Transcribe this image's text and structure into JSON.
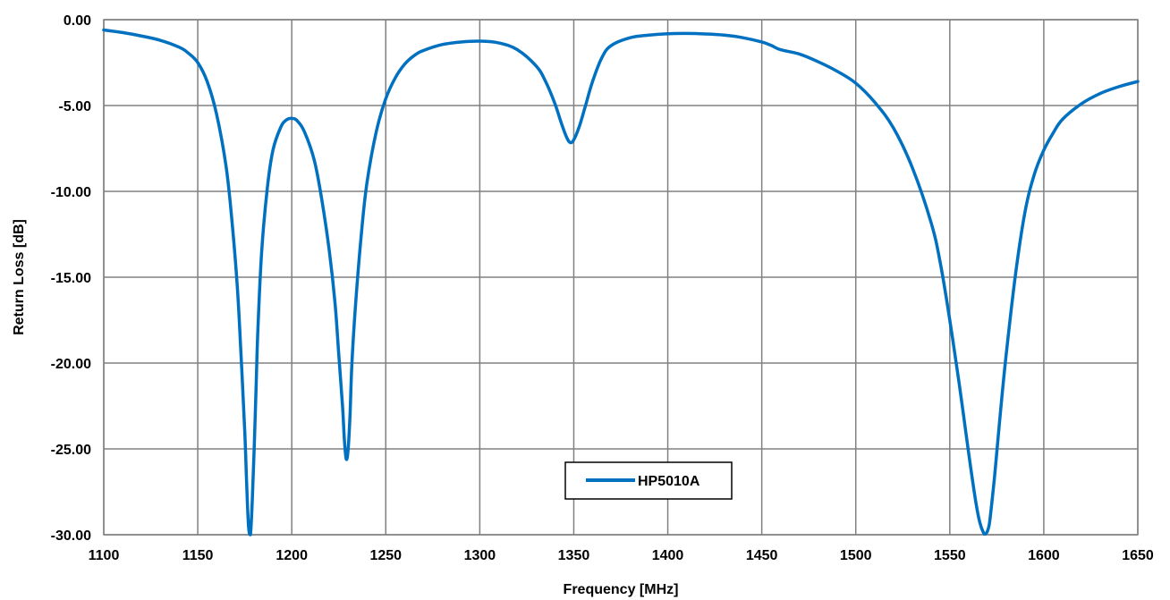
{
  "chart_data": {
    "type": "line",
    "title": "",
    "xlabel": "Frequency [MHz]",
    "ylabel": "Return Loss [dB]",
    "xlim": [
      1100,
      1650
    ],
    "ylim": [
      -30,
      0
    ],
    "x_ticks": [
      1100,
      1150,
      1200,
      1250,
      1300,
      1350,
      1400,
      1450,
      1500,
      1550,
      1600,
      1650
    ],
    "x_tick_labels": [
      "1100",
      "1150",
      "1200",
      "1250",
      "1300",
      "1350",
      "1400",
      "1450",
      "1500",
      "1550",
      "1600",
      "1650"
    ],
    "y_ticks": [
      0,
      -5,
      -10,
      -15,
      -20,
      -25,
      -30
    ],
    "y_tick_labels": [
      "0.00",
      "-5.00",
      "-10.00",
      "-15.00",
      "-20.00",
      "-25.00",
      "-30.00"
    ],
    "grid": true,
    "legend_position": "bottom-center",
    "series": [
      {
        "name": "HP5010A",
        "color": "#0070c0",
        "x": [
          1100,
          1110,
          1120,
          1130,
          1140,
          1145,
          1150,
          1155,
          1160,
          1165,
          1168,
          1171,
          1173,
          1175,
          1176,
          1177,
          1178,
          1179,
          1180,
          1181,
          1182,
          1184,
          1187,
          1190,
          1194,
          1197,
          1200,
          1203,
          1207,
          1212,
          1216,
          1220,
          1223,
          1225,
          1227,
          1228,
          1229,
          1230,
          1231,
          1232,
          1234,
          1237,
          1240,
          1245,
          1250,
          1255,
          1260,
          1265,
          1270,
          1280,
          1290,
          1300,
          1310,
          1320,
          1330,
          1335,
          1340,
          1343,
          1346,
          1348,
          1350,
          1353,
          1356,
          1360,
          1365,
          1370,
          1380,
          1390,
          1400,
          1410,
          1420,
          1430,
          1440,
          1450,
          1455,
          1460,
          1470,
          1480,
          1490,
          1500,
          1510,
          1520,
          1530,
          1540,
          1545,
          1550,
          1555,
          1558,
          1561,
          1564,
          1566,
          1568,
          1569,
          1570,
          1571,
          1572,
          1574,
          1577,
          1580,
          1585,
          1590,
          1595,
          1600,
          1605,
          1610,
          1620,
          1630,
          1640,
          1650
        ],
        "values": [
          -0.6,
          -0.75,
          -0.95,
          -1.2,
          -1.6,
          -1.95,
          -2.5,
          -3.6,
          -5.5,
          -8.5,
          -11.5,
          -15.5,
          -19.5,
          -24,
          -27,
          -29.5,
          -30,
          -28,
          -25,
          -21.5,
          -18,
          -13.5,
          -9.8,
          -7.6,
          -6.3,
          -5.85,
          -5.75,
          -5.9,
          -6.6,
          -8.2,
          -10.5,
          -13.5,
          -16.5,
          -19.5,
          -22.5,
          -24.5,
          -25.6,
          -25,
          -23,
          -20,
          -16.5,
          -12.5,
          -9.5,
          -6.5,
          -4.6,
          -3.4,
          -2.6,
          -2.1,
          -1.8,
          -1.45,
          -1.3,
          -1.25,
          -1.35,
          -1.75,
          -2.7,
          -3.6,
          -4.9,
          -5.9,
          -6.8,
          -7.15,
          -7,
          -6.2,
          -5.1,
          -3.6,
          -2.2,
          -1.5,
          -1.05,
          -0.9,
          -0.82,
          -0.8,
          -0.83,
          -0.9,
          -1.05,
          -1.3,
          -1.5,
          -1.75,
          -2.0,
          -2.45,
          -3.0,
          -3.7,
          -4.8,
          -6.3,
          -8.6,
          -11.8,
          -14.2,
          -17.5,
          -21.2,
          -23.6,
          -26,
          -28.2,
          -29.3,
          -29.9,
          -29.95,
          -29.8,
          -29.4,
          -28.5,
          -26.4,
          -22.8,
          -19.5,
          -14.8,
          -11.2,
          -9,
          -7.6,
          -6.6,
          -5.8,
          -4.9,
          -4.3,
          -3.9,
          -3.6
        ]
      }
    ]
  }
}
